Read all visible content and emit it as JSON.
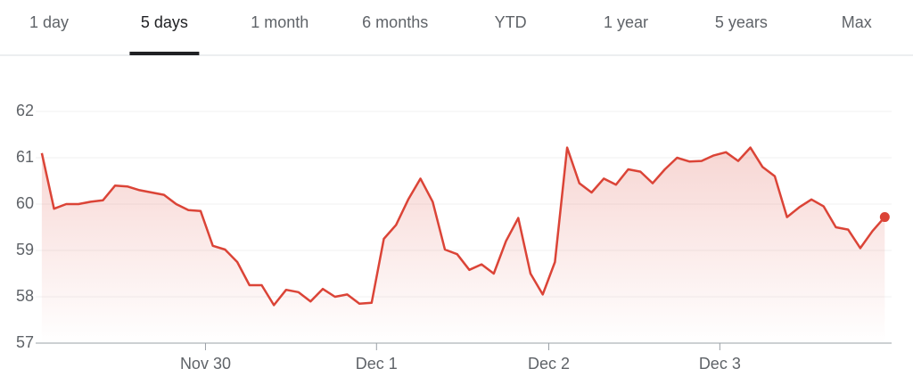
{
  "tabs": [
    "1 day",
    "5 days",
    "1 month",
    "6 months",
    "YTD",
    "1 year",
    "5 years",
    "Max"
  ],
  "selected_tab": 1,
  "chart_data": {
    "type": "line",
    "color": "#db4437",
    "values": [
      61.1,
      59.9,
      60.0,
      60.0,
      60.05,
      60.08,
      60.4,
      60.38,
      60.3,
      60.25,
      60.2,
      60.0,
      59.87,
      59.85,
      59.1,
      59.02,
      58.75,
      58.25,
      58.25,
      57.82,
      58.15,
      58.1,
      57.9,
      58.17,
      58.0,
      58.05,
      57.85,
      57.87,
      59.25,
      59.55,
      60.1,
      60.55,
      60.05,
      59.02,
      58.92,
      58.58,
      58.7,
      58.5,
      59.2,
      59.7,
      58.5,
      58.05,
      58.75,
      61.22,
      60.45,
      60.25,
      60.55,
      60.42,
      60.75,
      60.7,
      60.45,
      60.75,
      61.0,
      60.92,
      60.93,
      61.05,
      61.12,
      60.93,
      61.22,
      60.8,
      60.6,
      59.72,
      59.93,
      60.1,
      59.95,
      59.5,
      59.45,
      59.05,
      59.42,
      59.72
    ],
    "xlim": [
      -0.5,
      69.56
    ],
    "xticks": [
      {
        "value": 13.4,
        "label": "Nov 30"
      },
      {
        "value": 27.4,
        "label": "Dec 1"
      },
      {
        "value": 41.5,
        "label": "Dec 2"
      },
      {
        "value": 55.5,
        "label": "Dec 3"
      }
    ],
    "ylim": [
      57,
      62
    ],
    "yticks": [
      57,
      58,
      59,
      60,
      61,
      62
    ],
    "grid": true
  }
}
